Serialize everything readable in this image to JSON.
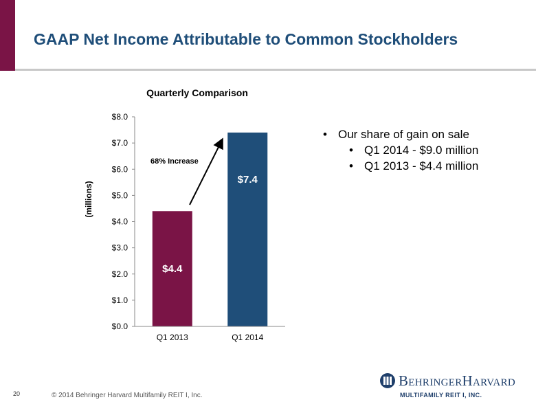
{
  "slide": {
    "title": "GAAP Net Income Attributable to Common Stockholders",
    "page_number": "20",
    "copyright": "© 2014 Behringer Harvard Multifamily REIT I, Inc."
  },
  "chart_data": {
    "type": "bar",
    "title": "Quarterly Comparison",
    "categories": [
      "Q1 2013",
      "Q1 2014"
    ],
    "values": [
      4.4,
      7.4
    ],
    "data_labels": [
      "$4.4",
      "$7.4"
    ],
    "ylabel": "(millions)",
    "ylim": [
      0,
      8
    ],
    "ytick_labels": [
      "$0.0",
      "$1.0",
      "$2.0",
      "$3.0",
      "$4.0",
      "$5.0",
      "$6.0",
      "$7.0",
      "$8.0"
    ],
    "bar_colors": [
      "#7a1446",
      "#1f4e79"
    ],
    "grid": false,
    "legend": "none",
    "annotation": "68% Increase"
  },
  "bullets": {
    "main": "Our share of gain on sale",
    "subs": [
      "Q1 2014 - $9.0 million",
      "Q1 2013 - $4.4 million"
    ]
  },
  "logo": {
    "name": "BehringerHarvard",
    "sub": "MULTIFAMILY REIT I, INC.",
    "icon": "bh-logo-icon"
  },
  "colors": {
    "accent": "#7a1446",
    "title": "#1f4e79"
  }
}
